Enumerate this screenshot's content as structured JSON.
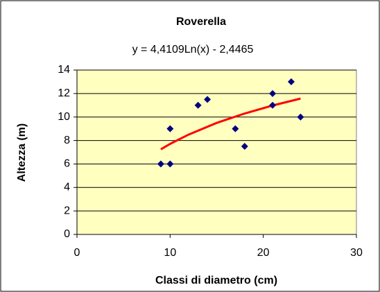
{
  "chart_data": {
    "type": "scatter",
    "title": "Roverella",
    "annotations": [
      "y = 4,4109Ln(x) - 2,4465"
    ],
    "x_label": "Classi di diametro (cm)",
    "y_label": "Altezza (m)",
    "x": [
      9,
      10,
      10,
      13,
      14,
      17,
      18,
      21,
      21,
      23,
      24
    ],
    "values": [
      6,
      6,
      9,
      11,
      11.5,
      9,
      7.5,
      12,
      11,
      13,
      10
    ],
    "color": "#000080",
    "trendline": {
      "x": [
        9,
        10,
        12,
        15,
        18,
        21,
        24
      ],
      "values": [
        7.25,
        7.71,
        8.51,
        9.5,
        10.3,
        10.98,
        11.57
      ],
      "color": "#ff0000"
    },
    "xlim": [
      0,
      30
    ],
    "xticks": [
      0,
      10,
      20,
      30
    ],
    "ylim": [
      0,
      14
    ],
    "yticks": [
      0,
      2,
      4,
      6,
      8,
      10,
      12,
      14
    ],
    "grid": true,
    "plot_background": "#ffffc0"
  }
}
